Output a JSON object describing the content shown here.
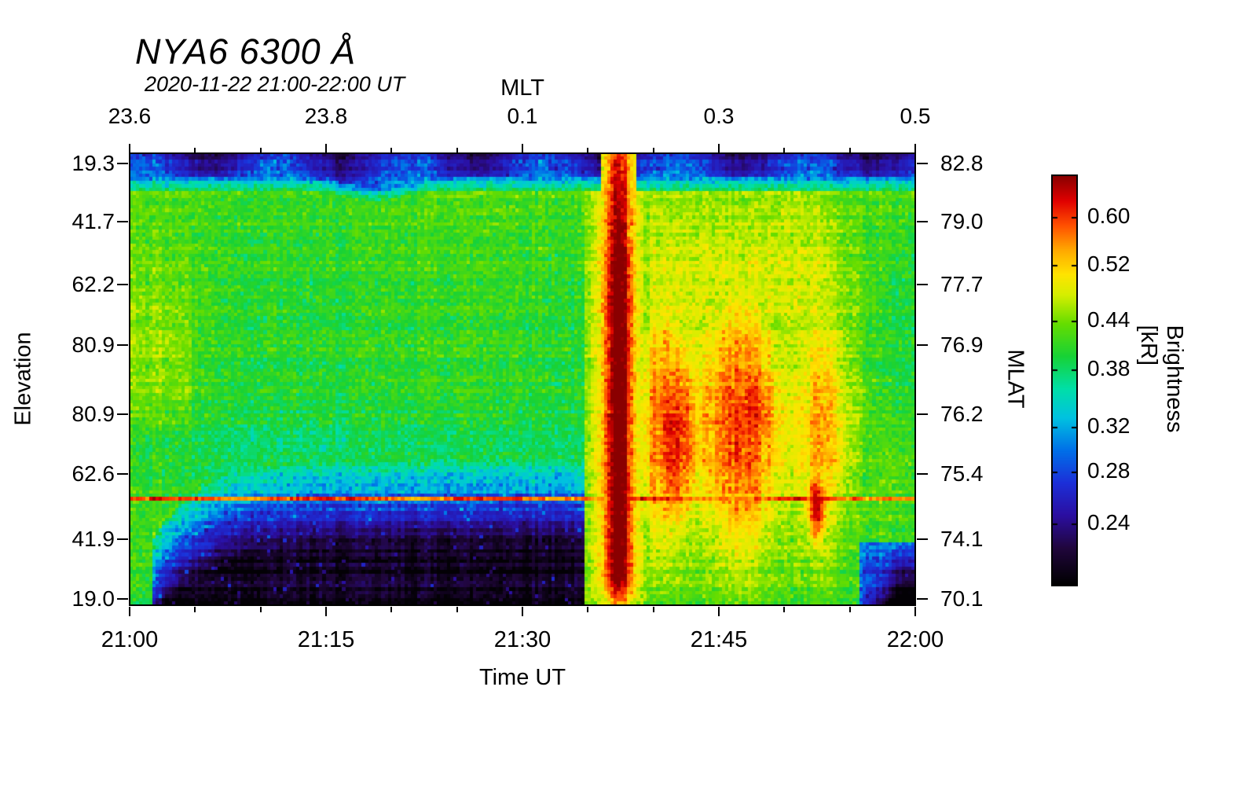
{
  "figure": {
    "title": "NYA6 6300 Å",
    "subtitle": "2020-11-22 21:00-22:00 UT"
  },
  "chart_data": {
    "type": "heatmap",
    "title": "NYA6 6300 Å",
    "subtitle": "2020-11-22 21:00-22:00 UT",
    "xlabel": "Time UT",
    "x_axis": {
      "ticks": [
        "21:00",
        "21:15",
        "21:30",
        "21:45",
        "22:00"
      ],
      "fracs": [
        0,
        0.25,
        0.5,
        0.75,
        1
      ]
    },
    "top_axis": {
      "label": "MLT",
      "ticks": [
        "23.6",
        "23.8",
        "0.1",
        "0.3",
        "0.5"
      ],
      "fracs": [
        0,
        0.25,
        0.5,
        0.75,
        1
      ]
    },
    "left_axis": {
      "label": "Elevation",
      "ticks": [
        "19.3",
        "41.7",
        "62.2",
        "80.9",
        "80.9",
        "62.6",
        "41.9",
        "19.0"
      ],
      "fracs": [
        0.022,
        0.152,
        0.29,
        0.425,
        0.577,
        0.71,
        0.854,
        0.986
      ]
    },
    "right_axis": {
      "label": "MLAT",
      "ticks": [
        "82.8",
        "79.0",
        "77.7",
        "76.9",
        "76.2",
        "75.4",
        "74.1",
        "70.1"
      ],
      "fracs": [
        0.022,
        0.152,
        0.29,
        0.425,
        0.577,
        0.71,
        0.854,
        0.986
      ]
    },
    "colorbar": {
      "label": "Brightness [kR]",
      "ticks": [
        "0.60",
        "0.52",
        "0.44",
        "0.38",
        "0.32",
        "0.28",
        "0.24"
      ],
      "scale": "log",
      "range": [
        0.2,
        0.68
      ],
      "stops": [
        [
          0.0,
          "#000000"
        ],
        [
          0.09,
          "#20063c"
        ],
        [
          0.17,
          "#2b0ea0"
        ],
        [
          0.25,
          "#1c2fd8"
        ],
        [
          0.33,
          "#0070e8"
        ],
        [
          0.41,
          "#00c2e0"
        ],
        [
          0.48,
          "#00dfa8"
        ],
        [
          0.56,
          "#17d236"
        ],
        [
          0.64,
          "#66dd00"
        ],
        [
          0.71,
          "#d6ee00"
        ],
        [
          0.76,
          "#ffe400"
        ],
        [
          0.82,
          "#ffa800"
        ],
        [
          0.88,
          "#ff5000"
        ],
        [
          0.94,
          "#e00000"
        ],
        [
          1.0,
          "#8a0000"
        ]
      ]
    },
    "grid": {
      "cols": 240,
      "rows": 130
    },
    "seed": 42,
    "features": {
      "background": 0.405,
      "top_band": {
        "depth": 0.055,
        "value": 0.245,
        "bump_t": 0.31,
        "bump_depth": 0.022
      },
      "dark_wedge": {
        "t_start": 0.03,
        "t_end": 0.585,
        "base_e": 0.75,
        "edge_amp": 0.18,
        "edge_decay": 0.06,
        "floor": 0.212
      },
      "arc": {
        "t_center": 0.622,
        "t_sigma": 0.021,
        "base": 0.44,
        "peak": 0.27
      },
      "active_region": {
        "t_start": 0.62,
        "t_end": 0.93,
        "level": 0.13
      },
      "red_patches": {
        "p1_t": 0.695,
        "p2_t": 0.79
      },
      "second_blob": {
        "t_center": 0.875,
        "e_center": 0.78,
        "e_sigma": 0.09,
        "value": 0.63
      },
      "artifact_line": {
        "e": 0.764,
        "value": 0.585
      },
      "right_corner_dark": {
        "t_start": 0.93,
        "e_start": 0.86
      }
    }
  }
}
